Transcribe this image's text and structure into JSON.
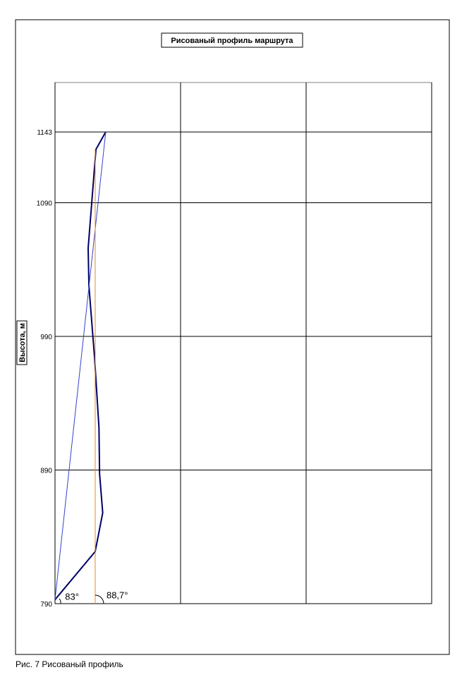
{
  "chart_data": {
    "type": "line",
    "title": "Рисованый профиль маршрута",
    "y_label": "Высота, м",
    "caption": "Рис. 7 Рисованый профиль",
    "xlim": [
      0,
      3
    ],
    "xticks": [
      0,
      1,
      2,
      3
    ],
    "ylim": [
      790,
      1180
    ],
    "yticks": [
      790,
      890,
      990,
      1090,
      1143
    ],
    "grid": true,
    "series": [
      {
        "color": "#000066",
        "x": [
          0,
          0.32,
          0.38,
          0.355,
          0.35,
          0.315,
          0.27,
          0.264,
          0.326,
          0.404
        ],
        "values": [
          793,
          829,
          858,
          887,
          922,
          974,
          1028,
          1056,
          1130,
          1143
        ],
        "width": 2
      },
      {
        "color": "#3344cc",
        "x": [
          0,
          0.404
        ],
        "values": [
          793,
          1143
        ],
        "width": 1
      },
      {
        "color": "#e08a2a",
        "x": [
          0.32,
          0.32
        ],
        "values": [
          790,
          1130
        ],
        "width": 1
      }
    ],
    "annotations": [
      {
        "text": "83°",
        "x": 0.08,
        "y": 793
      },
      {
        "text": "88,7°",
        "x": 0.41,
        "y": 794
      }
    ]
  }
}
